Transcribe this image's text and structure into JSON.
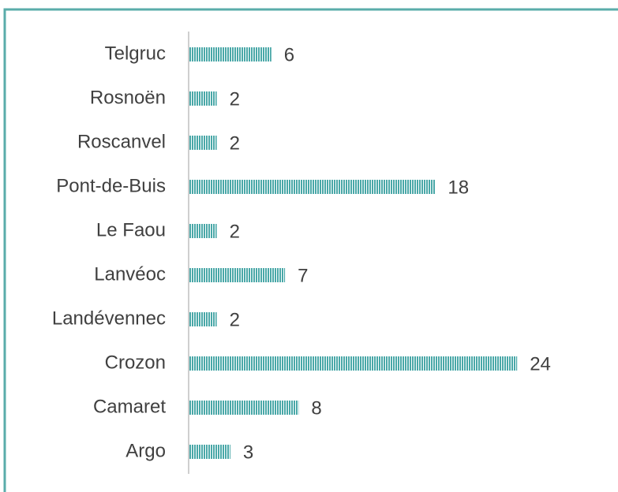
{
  "chart_data": {
    "type": "barh",
    "categories": [
      "Telgruc",
      "Rosnoën",
      "Roscanvel",
      "Pont-de-Buis",
      "Le Faou",
      "Lanvéoc",
      "Landévennec",
      "Crozon",
      "Camaret",
      "Argo"
    ],
    "values": [
      6,
      2,
      2,
      18,
      2,
      7,
      2,
      24,
      8,
      3
    ],
    "color": "#4aa8a8",
    "xlim": [
      0,
      30
    ]
  }
}
